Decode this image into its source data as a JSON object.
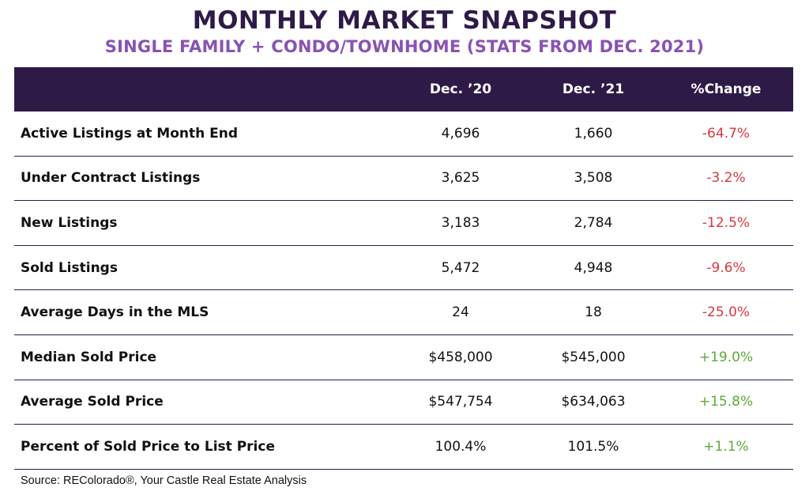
{
  "title": "MONTHLY MARKET SNAPSHOT",
  "subtitle": "SINGLE FAMILY + CONDO/TOWNHOME (STATS FROM DEC. 2021)",
  "colors": {
    "header_bg": "#2e1a47",
    "subtitle": "#8a52b3",
    "negative": "#d9373e",
    "positive": "#5fa83a"
  },
  "chart_data": {
    "type": "table",
    "columns": [
      "",
      "Dec. ’20",
      "Dec. ’21",
      "%Change"
    ],
    "rows": [
      {
        "label": "Active Listings at Month End",
        "dec20": "4,696",
        "dec21": "1,660",
        "change": "-64.7%"
      },
      {
        "label": "Under Contract Listings",
        "dec20": "3,625",
        "dec21": "3,508",
        "change": "-3.2%"
      },
      {
        "label": "New Listings",
        "dec20": "3,183",
        "dec21": "2,784",
        "change": "-12.5%"
      },
      {
        "label": "Sold Listings",
        "dec20": "5,472",
        "dec21": "4,948",
        "change": "-9.6%"
      },
      {
        "label": "Average Days in the MLS",
        "dec20": "24",
        "dec21": "18",
        "change": "-25.0%"
      },
      {
        "label": "Median Sold Price",
        "dec20": "$458,000",
        "dec21": "$545,000",
        "change": "+19.0%"
      },
      {
        "label": "Average Sold Price",
        "dec20": "$547,754",
        "dec21": "$634,063",
        "change": "+15.8%"
      },
      {
        "label": "Percent of Sold Price to List Price",
        "dec20": "100.4%",
        "dec21": "101.5%",
        "change": "+1.1%"
      }
    ]
  },
  "source": "Source: REColorado®, Your Castle Real Estate Analysis"
}
